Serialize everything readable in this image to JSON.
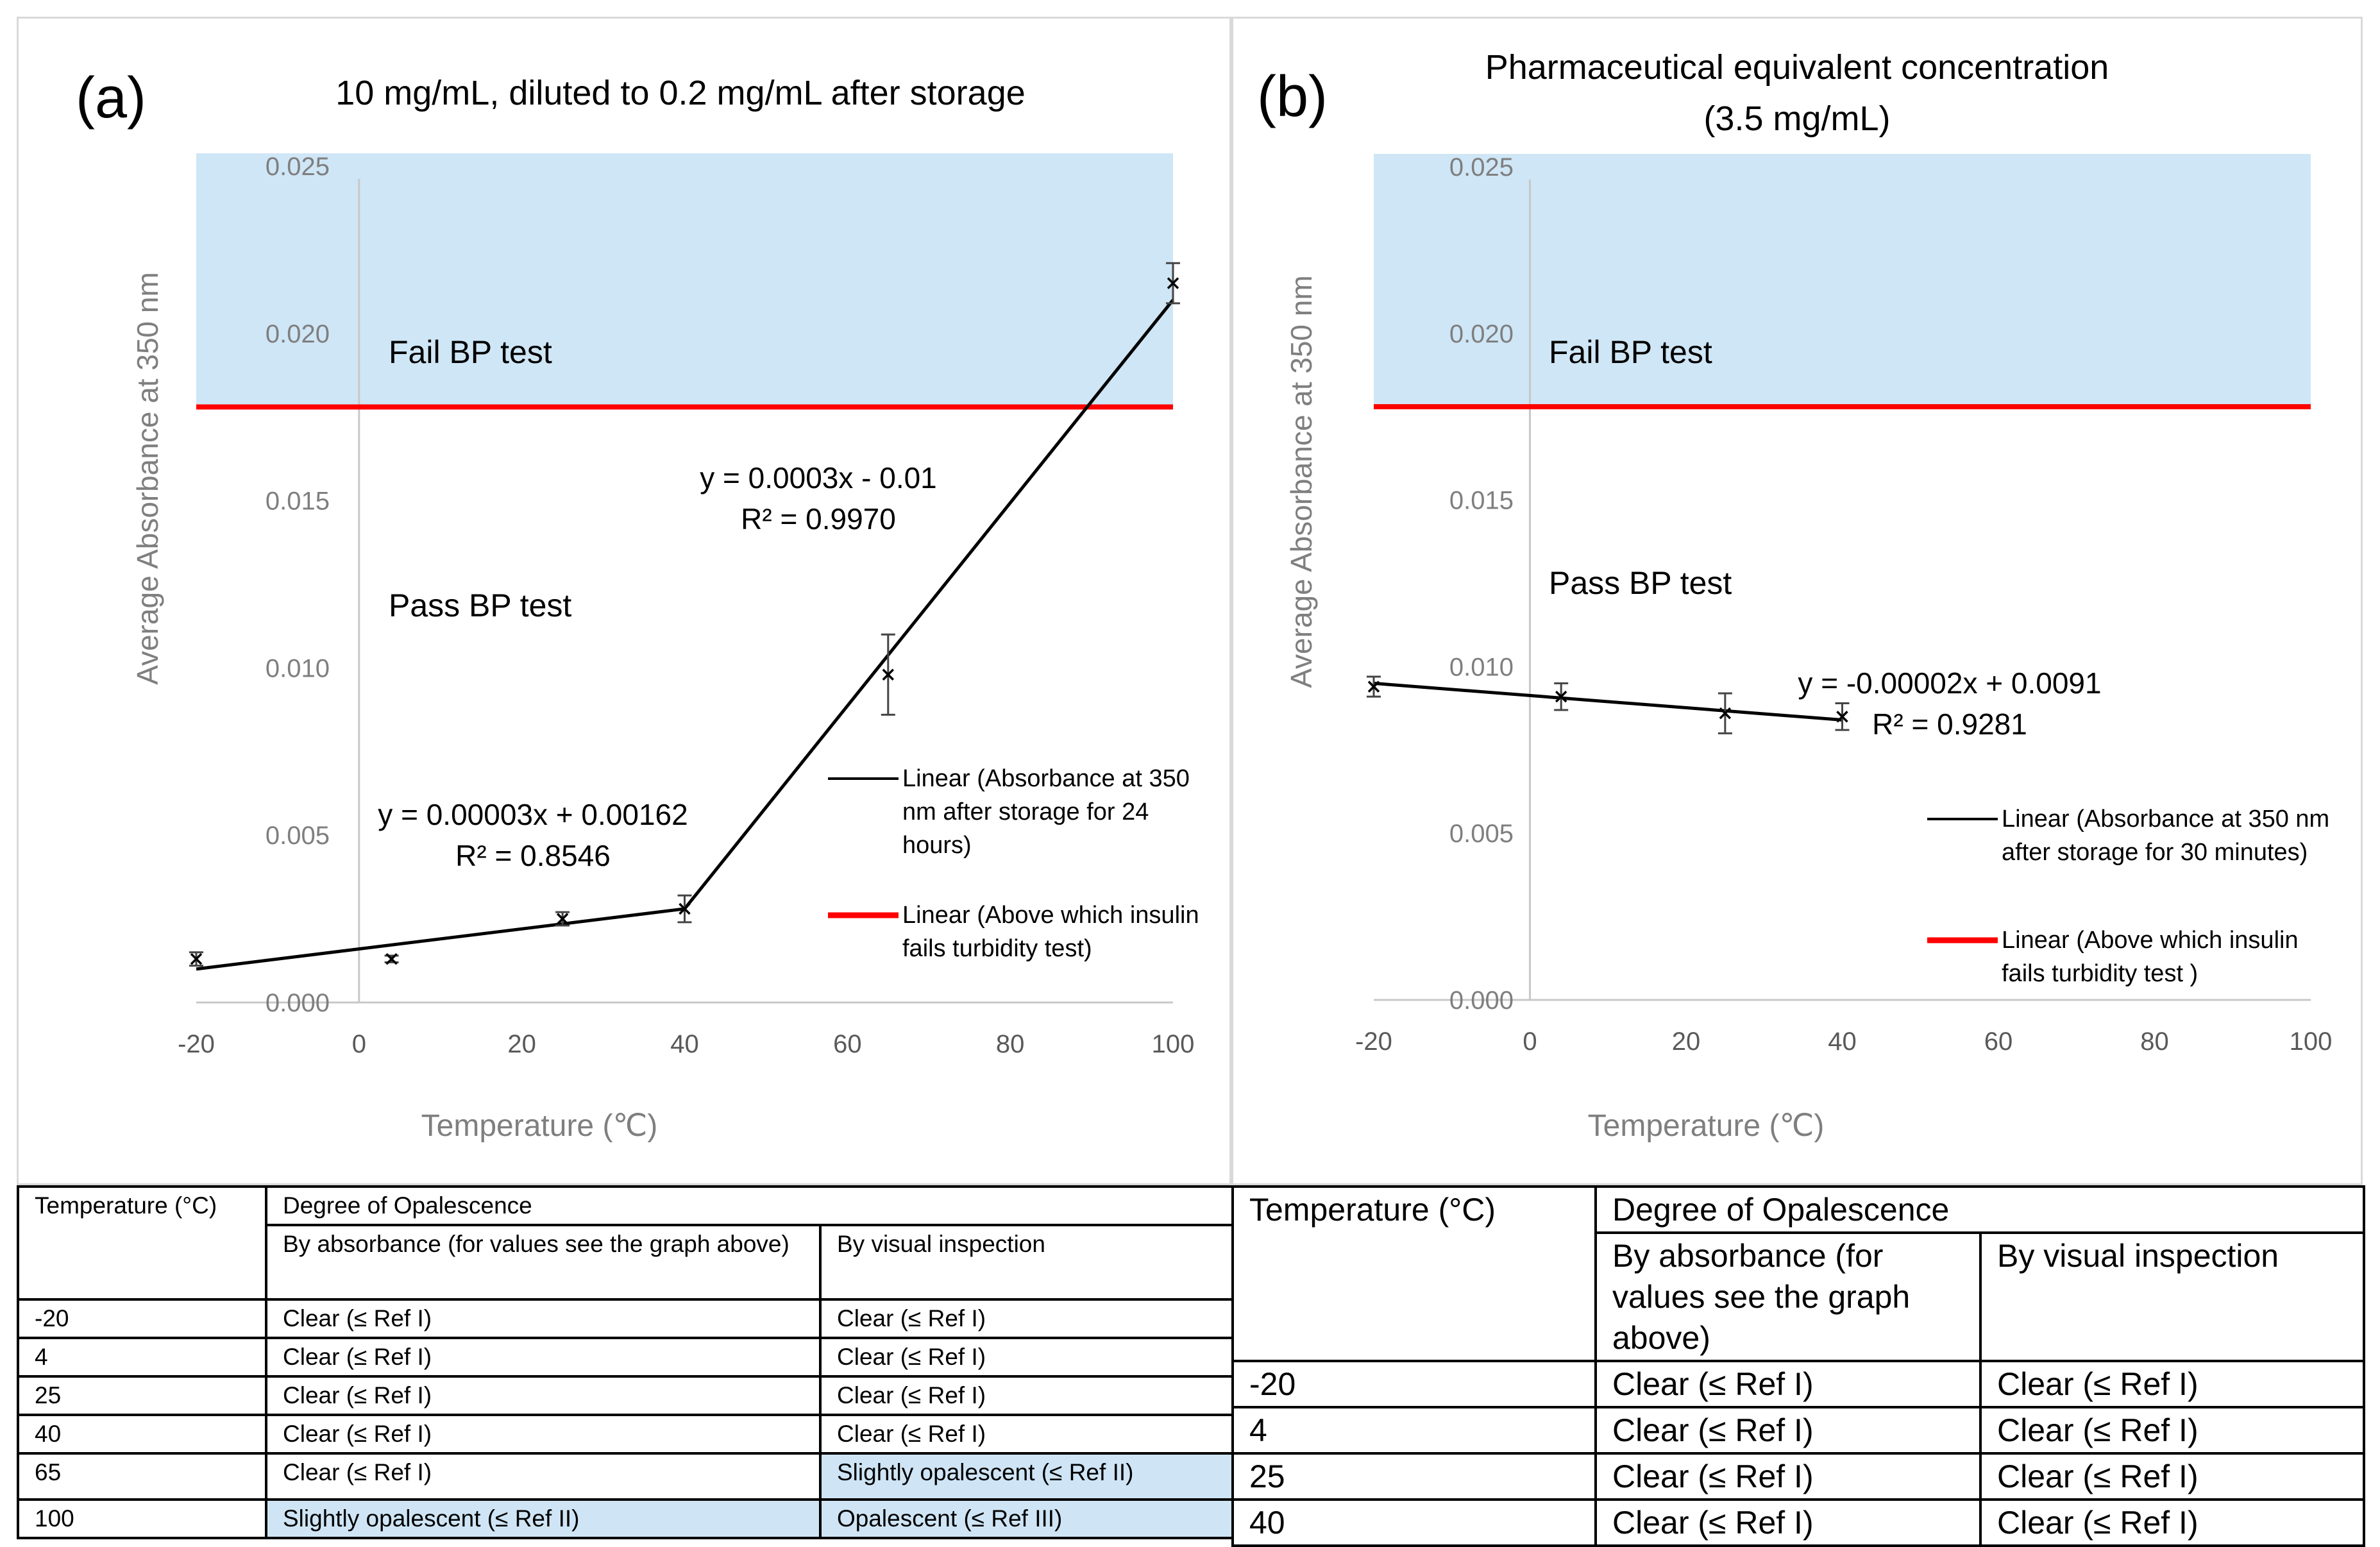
{
  "colors": {
    "fail_region": "#cfe6f6",
    "trend_line": "#000000",
    "threshold_line": "#ff0000",
    "axis_text": "#7f7f7f",
    "table_highlight": "#cfe5f5"
  },
  "chart_data": [
    {
      "type": "line",
      "panel_label": "(a)",
      "title": "10 mg/mL, diluted to 0.2 mg/mL after storage",
      "xlabel": "Temperature (℃)",
      "ylabel": "Average  Absorbance at 350 nm",
      "xlim": [
        -20,
        100
      ],
      "ylim": [
        0,
        0.025
      ],
      "xticks": [
        "-20",
        "0",
        "20",
        "40",
        "60",
        "80",
        "100"
      ],
      "yticks": [
        "0.000",
        "0.005",
        "0.010",
        "0.015",
        "0.020",
        "0.025"
      ],
      "threshold": 0.0178,
      "fail_region_label": "Fail BP test",
      "pass_region_label": "Pass BP test",
      "series": [
        {
          "name": "Absorbance at 350 nm after storage for 24 hours",
          "x": [
            -20,
            4,
            25,
            40,
            65,
            100
          ],
          "y": [
            0.0013,
            0.0013,
            0.0025,
            0.0028,
            0.0098,
            0.0215
          ],
          "err": [
            0.0002,
            0.0001,
            0.0002,
            0.0004,
            0.0012,
            0.0006
          ]
        }
      ],
      "trendlines": [
        {
          "x": [
            -20,
            40
          ],
          "y": [
            0.001,
            0.0028
          ]
        },
        {
          "x": [
            40,
            100
          ],
          "y": [
            0.0028,
            0.021
          ]
        }
      ],
      "equations": [
        {
          "eq": "y = 0.00003x + 0.00162",
          "r2": "R² = 0.8546"
        },
        {
          "eq": "y = 0.0003x - 0.01",
          "r2": "R² = 0.9970"
        }
      ],
      "legend": [
        {
          "lines": [
            "Linear (Absorbance at 350",
            "nm after storage for 24",
            "hours)"
          ]
        },
        {
          "lines": [
            "Linear (Above which insulin",
            "fails turbidity test)"
          ]
        }
      ]
    },
    {
      "type": "line",
      "panel_label": "(b)",
      "title_lines": [
        "Pharmaceutical equivalent concentration",
        "(3.5 mg/mL)"
      ],
      "xlabel": "Temperature (℃)",
      "ylabel": "Average  Absorbance at 350 nm",
      "xlim": [
        -20,
        100
      ],
      "ylim": [
        0,
        0.025
      ],
      "xticks": [
        "-20",
        "0",
        "20",
        "40",
        "60",
        "80",
        "100"
      ],
      "yticks": [
        "0.000",
        "0.005",
        "0.010",
        "0.015",
        "0.020",
        "0.025"
      ],
      "threshold": 0.0178,
      "fail_region_label": "Fail BP test",
      "pass_region_label": "Pass BP test",
      "series": [
        {
          "name": "Absorbance at 350 nm after storage for 30 minutes",
          "x": [
            -20,
            4,
            25,
            40
          ],
          "y": [
            0.0094,
            0.0091,
            0.0086,
            0.0085
          ],
          "err": [
            0.0003,
            0.0004,
            0.0006,
            0.0004
          ]
        }
      ],
      "trendlines": [
        {
          "x": [
            -20,
            40
          ],
          "y": [
            0.0095,
            0.0084
          ]
        }
      ],
      "equations": [
        {
          "eq": "y = -0.00002x + 0.0091",
          "r2": "R² = 0.9281"
        }
      ],
      "legend": [
        {
          "lines": [
            "Linear (Absorbance at 350 nm",
            "after storage for 30 minutes)"
          ]
        },
        {
          "lines": [
            "Linear (Above which insulin",
            "fails turbidity test )"
          ]
        }
      ]
    }
  ],
  "tables": {
    "a": {
      "header_temp": "Temperature  (°C)",
      "header_degree": "Degree of Opalescence",
      "header_absorbance": "By absorbance (for values see the graph above)",
      "header_visual": "By visual inspection",
      "rows": [
        {
          "temp": "-20",
          "absorbance": "Clear (≤ Ref I)",
          "visual": "Clear (≤ Ref I)"
        },
        {
          "temp": "4",
          "absorbance": "Clear (≤ Ref I)",
          "visual": "Clear (≤ Ref I)"
        },
        {
          "temp": "25",
          "absorbance": "Clear (≤ Ref I)",
          "visual": "Clear (≤ Ref I)"
        },
        {
          "temp": "40",
          "absorbance": "Clear (≤ Ref I)",
          "visual": "Clear (≤ Ref I)"
        },
        {
          "temp": "65",
          "absorbance": "Clear (≤ Ref I)",
          "visual": "Slightly opalescent (≤ Ref II)"
        },
        {
          "temp": "100",
          "absorbance": "Slightly opalescent (≤ Ref II)",
          "visual": "Opalescent (≤ Ref III)"
        }
      ]
    },
    "b": {
      "header_temp": "Temperature (°C)",
      "header_degree": "Degree of Opalescence",
      "header_absorbance": "By absorbance (for values see the graph above)",
      "header_visual": "By visual inspection",
      "rows": [
        {
          "temp": "-20",
          "absorbance": "Clear (≤ Ref I)",
          "visual": "Clear (≤ Ref I)"
        },
        {
          "temp": "4",
          "absorbance": "Clear (≤ Ref I)",
          "visual": "Clear (≤ Ref I)"
        },
        {
          "temp": "25",
          "absorbance": "Clear (≤ Ref I)",
          "visual": "Clear (≤ Ref I)"
        },
        {
          "temp": "40",
          "absorbance": "Clear (≤ Ref I)",
          "visual": "Clear (≤ Ref I)"
        }
      ]
    }
  }
}
